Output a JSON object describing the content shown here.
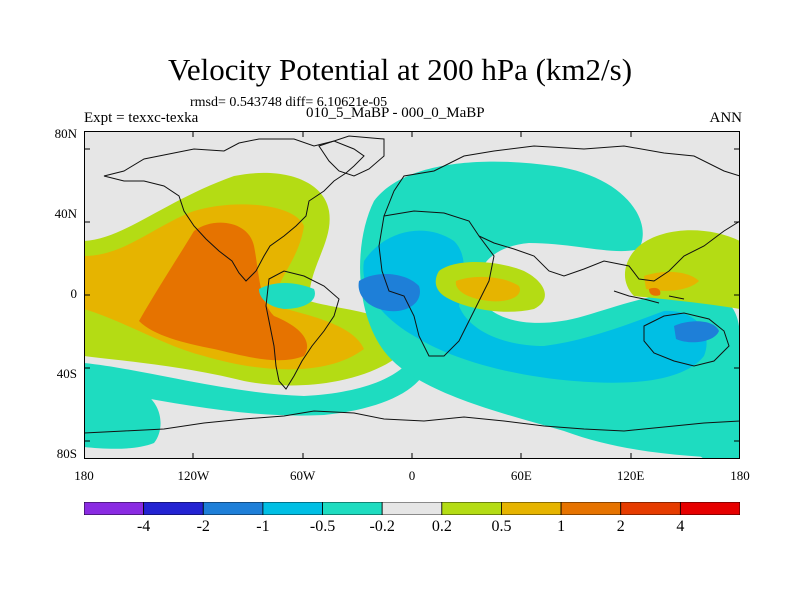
{
  "title": "Velocity Potential at 200 hPa (km2/s)",
  "stats": "rmsd= 0.543748  diff= 6.10621e-05",
  "experiment": "Expt = texxc-texka",
  "comparison": "010_5_MaBP - 000_0_MaBP",
  "season": "ANN",
  "lat_labels": [
    "80N",
    "40N",
    "0",
    "40S",
    "80S"
  ],
  "lat_values": [
    80,
    40,
    0,
    -40,
    -80
  ],
  "lon_labels": [
    "180",
    "120W",
    "60W",
    "0",
    "60E",
    "120E",
    "180"
  ],
  "lon_values": [
    -180,
    -120,
    -60,
    0,
    60,
    120,
    180
  ],
  "colorbar": {
    "levels": [
      "-4",
      "-2",
      "-1",
      "-0.5",
      "-0.2",
      "0.2",
      "0.5",
      "1",
      "2",
      "4"
    ],
    "colors": [
      "#8a2be2",
      "#2323d2",
      "#1e7fd8",
      "#00bfe4",
      "#1edcc0",
      "#e6e6e6",
      "#b4dc14",
      "#e6b400",
      "#e67300",
      "#e63c00",
      "#e60000"
    ]
  }
}
